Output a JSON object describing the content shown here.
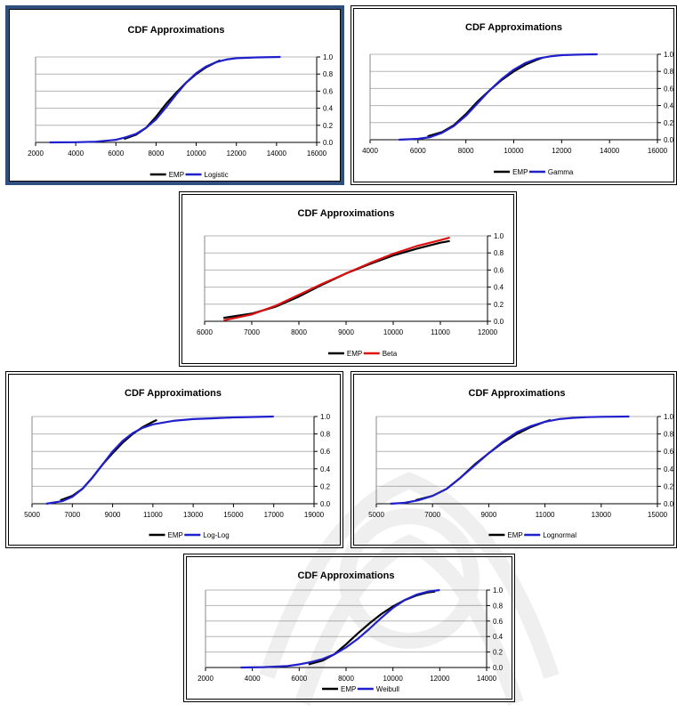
{
  "charts": [
    {
      "chart_data": {
        "type": "line",
        "title": "CDF Approximations",
        "xlim": [
          2000,
          16000
        ],
        "xticks": [
          2000,
          4000,
          6000,
          8000,
          10000,
          12000,
          14000,
          16000
        ],
        "ylim": [
          0,
          1
        ],
        "yticks": [
          "0.0",
          "0.2",
          "0.4",
          "0.6",
          "0.8",
          "1.0"
        ],
        "yaxis_position": "right",
        "grid": "horizontal",
        "legend_position": "bottom",
        "series": [
          {
            "name": "EMP",
            "color": "#000000",
            "x": [
              6400,
              7000,
              7500,
              8000,
              8500,
              9000,
              9500,
              10000,
              10500,
              11000,
              11200
            ],
            "y": [
              0.04,
              0.09,
              0.17,
              0.3,
              0.45,
              0.58,
              0.7,
              0.8,
              0.88,
              0.94,
              0.96
            ]
          },
          {
            "name": "Logistic",
            "color": "#1f1fcc",
            "x": [
              2700,
              4000,
              5000,
              6000,
              6500,
              7000,
              7500,
              8000,
              8500,
              9000,
              9500,
              10000,
              10500,
              11000,
              11500,
              12000,
              13000,
              14200
            ],
            "y": [
              0.0,
              0.002,
              0.008,
              0.03,
              0.06,
              0.1,
              0.17,
              0.27,
              0.41,
              0.56,
              0.7,
              0.81,
              0.89,
              0.94,
              0.97,
              0.985,
              0.995,
              1.0
            ]
          }
        ]
      }
    },
    {
      "chart_data": {
        "type": "line",
        "title": "CDF Approximations",
        "xlim": [
          4000,
          16000
        ],
        "xticks": [
          4000,
          6000,
          8000,
          10000,
          12000,
          14000,
          16000
        ],
        "ylim": [
          0,
          1
        ],
        "yticks": [
          "0.0",
          "0.2",
          "0.4",
          "0.6",
          "0.8",
          "1.0"
        ],
        "yaxis_position": "right",
        "grid": "horizontal",
        "legend_position": "bottom",
        "series": [
          {
            "name": "EMP",
            "color": "#000000",
            "x": [
              6400,
              7000,
              7500,
              8000,
              8500,
              9000,
              9500,
              10000,
              10500,
              11000,
              11200
            ],
            "y": [
              0.04,
              0.09,
              0.17,
              0.3,
              0.45,
              0.58,
              0.7,
              0.8,
              0.88,
              0.94,
              0.96
            ]
          },
          {
            "name": "Gamma",
            "color": "#1f1fcc",
            "x": [
              5200,
              6000,
              6500,
              7000,
              7500,
              8000,
              8500,
              9000,
              9500,
              10000,
              10500,
              11000,
              11500,
              12000,
              12500,
              13000,
              13500
            ],
            "y": [
              0.0,
              0.01,
              0.03,
              0.08,
              0.16,
              0.28,
              0.43,
              0.58,
              0.71,
              0.82,
              0.9,
              0.95,
              0.975,
              0.99,
              0.995,
              0.998,
              1.0
            ]
          }
        ]
      }
    },
    {
      "chart_data": {
        "type": "line",
        "title": "CDF Approximations",
        "xlim": [
          6000,
          12000
        ],
        "xticks": [
          6000,
          7000,
          8000,
          9000,
          10000,
          11000,
          12000
        ],
        "ylim": [
          0,
          1
        ],
        "yticks": [
          "0.0",
          "0.2",
          "0.4",
          "0.6",
          "0.8",
          "1.0"
        ],
        "yaxis_position": "right",
        "grid": "horizontal",
        "legend_position": "bottom",
        "series": [
          {
            "name": "EMP",
            "color": "#000000",
            "x": [
              6400,
              7000,
              7500,
              8000,
              8500,
              9000,
              9500,
              10000,
              10500,
              11000,
              11200
            ],
            "y": [
              0.04,
              0.09,
              0.17,
              0.29,
              0.43,
              0.56,
              0.67,
              0.77,
              0.85,
              0.92,
              0.94
            ]
          },
          {
            "name": "Beta",
            "color": "#dd1111",
            "x": [
              6400,
              7000,
              7500,
              8000,
              8500,
              9000,
              9500,
              10000,
              10500,
              11000,
              11200
            ],
            "y": [
              0.01,
              0.08,
              0.18,
              0.31,
              0.44,
              0.56,
              0.68,
              0.79,
              0.88,
              0.95,
              0.98
            ]
          }
        ]
      }
    },
    {
      "chart_data": {
        "type": "line",
        "title": "CDF Approximations",
        "xlim": [
          5000,
          19000
        ],
        "xticks": [
          5000,
          7000,
          9000,
          11000,
          13000,
          15000,
          17000,
          19000
        ],
        "ylim": [
          0,
          1
        ],
        "yticks": [
          "0.0",
          "0.2",
          "0.4",
          "0.6",
          "0.8",
          "1.0"
        ],
        "yaxis_position": "right",
        "grid": "horizontal",
        "legend_position": "bottom",
        "series": [
          {
            "name": "EMP",
            "color": "#000000",
            "x": [
              6400,
              7000,
              7500,
              8000,
              8500,
              9000,
              9500,
              10000,
              10500,
              11000,
              11200
            ],
            "y": [
              0.04,
              0.09,
              0.17,
              0.3,
              0.45,
              0.58,
              0.7,
              0.8,
              0.88,
              0.94,
              0.96
            ]
          },
          {
            "name": "Log-Log",
            "color": "#1f1fcc",
            "x": [
              5700,
              6500,
              7000,
              7500,
              8000,
              8500,
              9000,
              9500,
              10000,
              10500,
              11000,
              12000,
              13000,
              14000,
              15000,
              16000,
              17000
            ],
            "y": [
              0.0,
              0.03,
              0.08,
              0.17,
              0.3,
              0.45,
              0.6,
              0.72,
              0.81,
              0.87,
              0.91,
              0.95,
              0.97,
              0.98,
              0.99,
              0.995,
              1.0
            ]
          }
        ]
      }
    },
    {
      "chart_data": {
        "type": "line",
        "title": "CDF Approximations",
        "xlim": [
          5000,
          15000
        ],
        "xticks": [
          5000,
          7000,
          9000,
          11000,
          13000,
          15000
        ],
        "ylim": [
          0,
          1
        ],
        "yticks": [
          "0.0",
          "0.2",
          "0.4",
          "0.6",
          "0.8",
          "1.0"
        ],
        "yaxis_position": "right",
        "grid": "horizontal",
        "legend_position": "bottom",
        "series": [
          {
            "name": "EMP",
            "color": "#000000",
            "x": [
              6400,
              7000,
              7500,
              8000,
              8500,
              9000,
              9500,
              10000,
              10500,
              11000,
              11200
            ],
            "y": [
              0.04,
              0.09,
              0.17,
              0.3,
              0.45,
              0.58,
              0.7,
              0.8,
              0.88,
              0.94,
              0.96
            ]
          },
          {
            "name": "Lognormal",
            "color": "#1f1fcc",
            "x": [
              5500,
              6000,
              6500,
              7000,
              7500,
              8000,
              8500,
              9000,
              9500,
              10000,
              10500,
              11000,
              11500,
              12000,
              12500,
              13000,
              14000
            ],
            "y": [
              0.0,
              0.01,
              0.04,
              0.09,
              0.17,
              0.3,
              0.44,
              0.58,
              0.71,
              0.82,
              0.89,
              0.94,
              0.97,
              0.985,
              0.993,
              0.997,
              1.0
            ]
          }
        ]
      }
    },
    {
      "chart_data": {
        "type": "line",
        "title": "CDF Approximations",
        "xlim": [
          2000,
          14000
        ],
        "xticks": [
          2000,
          4000,
          6000,
          8000,
          10000,
          12000,
          14000
        ],
        "ylim": [
          0,
          1
        ],
        "yticks": [
          "0.0",
          "0.2",
          "0.4",
          "0.6",
          "0.8",
          "1.0"
        ],
        "yaxis_position": "right",
        "grid": "horizontal",
        "legend_position": "bottom",
        "series": [
          {
            "name": "EMP",
            "color": "#000000",
            "x": [
              6400,
              7000,
              7500,
              8000,
              8500,
              9000,
              9500,
              10000,
              10500,
              11000,
              11500,
              11800
            ],
            "y": [
              0.04,
              0.09,
              0.17,
              0.3,
              0.44,
              0.57,
              0.69,
              0.79,
              0.87,
              0.93,
              0.97,
              0.98
            ]
          },
          {
            "name": "Weibull",
            "color": "#1f1fcc",
            "x": [
              3500,
              4500,
              5500,
              6000,
              6500,
              7000,
              7500,
              8000,
              8500,
              9000,
              9500,
              10000,
              10500,
              11000,
              11500,
              12000
            ],
            "y": [
              0.0,
              0.005,
              0.02,
              0.04,
              0.07,
              0.11,
              0.17,
              0.26,
              0.37,
              0.5,
              0.64,
              0.77,
              0.87,
              0.94,
              0.98,
              1.0
            ]
          }
        ]
      }
    }
  ]
}
